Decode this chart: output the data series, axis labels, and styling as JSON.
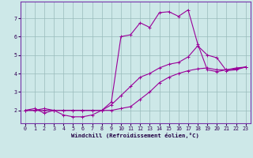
{
  "xlabel": "Windchill (Refroidissement éolien,°C)",
  "background_color": "#cde8e8",
  "line_color": "#990099",
  "grid_color": "#99bbbb",
  "xlim": [
    -0.5,
    23.5
  ],
  "ylim": [
    1.3,
    7.9
  ],
  "xticks": [
    0,
    1,
    2,
    3,
    4,
    5,
    6,
    7,
    8,
    9,
    10,
    11,
    12,
    13,
    14,
    15,
    16,
    17,
    18,
    19,
    20,
    21,
    22,
    23
  ],
  "yticks": [
    2,
    3,
    4,
    5,
    6,
    7
  ],
  "curve1_x": [
    0,
    1,
    2,
    3,
    4,
    5,
    6,
    7,
    8,
    9,
    10,
    11,
    12,
    13,
    14,
    15,
    16,
    17,
    18,
    19,
    20,
    21,
    22,
    23
  ],
  "curve1_y": [
    2.0,
    2.0,
    2.0,
    2.0,
    2.0,
    2.0,
    2.0,
    2.0,
    2.0,
    2.0,
    2.1,
    2.2,
    2.6,
    3.0,
    3.5,
    3.8,
    4.0,
    4.15,
    4.25,
    4.3,
    4.2,
    4.2,
    4.25,
    4.35
  ],
  "curve2_x": [
    0,
    1,
    2,
    3,
    4,
    5,
    6,
    7,
    8,
    9,
    10,
    11,
    12,
    13,
    14,
    15,
    16,
    17,
    18,
    19,
    20,
    21,
    22,
    23
  ],
  "curve2_y": [
    2.0,
    2.0,
    2.1,
    2.0,
    2.0,
    2.0,
    2.0,
    2.0,
    2.0,
    2.3,
    2.8,
    3.3,
    3.8,
    4.0,
    4.3,
    4.5,
    4.6,
    4.9,
    5.5,
    5.0,
    4.85,
    4.15,
    4.2,
    4.35
  ],
  "curve3_x": [
    0,
    1,
    2,
    3,
    4,
    5,
    6,
    7,
    8,
    9,
    10,
    11,
    12,
    13,
    14,
    15,
    16,
    17,
    18,
    19,
    20,
    21,
    22,
    23
  ],
  "curve3_y": [
    2.0,
    2.1,
    1.85,
    2.0,
    1.75,
    1.65,
    1.65,
    1.75,
    2.0,
    2.45,
    6.0,
    6.1,
    6.75,
    6.5,
    7.3,
    7.35,
    7.1,
    7.45,
    5.6,
    4.2,
    4.1,
    4.2,
    4.3,
    4.35
  ],
  "marker": "+"
}
